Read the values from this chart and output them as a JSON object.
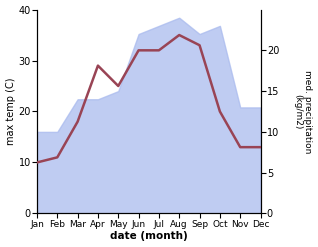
{
  "months": [
    "Jan",
    "Feb",
    "Mar",
    "Apr",
    "May",
    "Jun",
    "Jul",
    "Aug",
    "Sep",
    "Oct",
    "Nov",
    "Dec"
  ],
  "month_x": [
    0,
    1,
    2,
    3,
    4,
    5,
    6,
    7,
    8,
    9,
    10,
    11
  ],
  "max_temp": [
    10,
    11,
    18,
    29,
    25,
    32,
    32,
    35,
    33,
    20,
    13,
    13
  ],
  "precipitation": [
    10,
    10,
    14,
    14,
    15,
    22,
    23,
    24,
    22,
    23,
    13,
    13
  ],
  "temp_color": "#994455",
  "precip_fill_color": "#aabbee",
  "precip_fill_alpha": 0.75,
  "temp_lw": 1.8,
  "ylim_temp": [
    0,
    40
  ],
  "ylim_precip": [
    0,
    25
  ],
  "ylabel_left": "max temp (C)",
  "ylabel_right": "med. precipitation\n(kg/m2)",
  "xlabel": "date (month)",
  "yticks_left": [
    0,
    10,
    20,
    30,
    40
  ],
  "yticks_right": [
    0,
    5,
    10,
    15,
    20
  ],
  "bg_color": "#ffffff",
  "fig_width": 3.18,
  "fig_height": 2.47,
  "dpi": 100
}
